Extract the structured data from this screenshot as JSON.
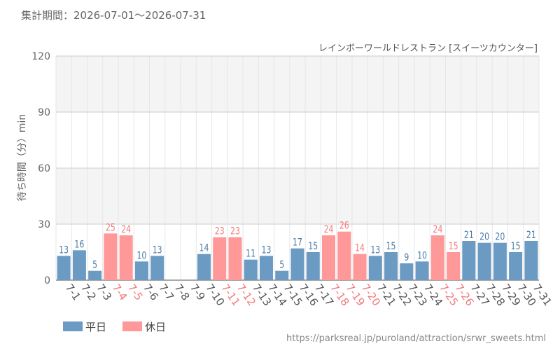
{
  "header": {
    "period_label": "集計期間：2026-07-01～2026-07-31",
    "attraction_name": "レインボーワールドレストラン [スイーツカウンター]",
    "source_url": "https://parksreal.jp/puroland/attraction/srwr_sweets.html"
  },
  "colors": {
    "weekday": "#6b9bc3",
    "holiday": "#ff9898",
    "weekday_text": "#4a7aa8",
    "holiday_text": "#f07a7a",
    "band": "#f4f4f4",
    "grid": "#e6e6e6",
    "axis_text": "#666666"
  },
  "chart_data": {
    "type": "bar",
    "title": "",
    "xlabel": "",
    "ylabel": "待ち時間（分）min",
    "ylim": [
      0,
      120
    ],
    "yticks": [
      0,
      30,
      60,
      90,
      120
    ],
    "legend_position": "bottom-left",
    "legend": [
      {
        "name": "平日",
        "kind": "weekday"
      },
      {
        "name": "休日",
        "kind": "holiday"
      }
    ],
    "categories": [
      "7-1",
      "7-2",
      "7-3",
      "7-4",
      "7-5",
      "7-6",
      "7-7",
      "7-8",
      "7-9",
      "7-10",
      "7-11",
      "7-12",
      "7-13",
      "7-14",
      "7-15",
      "7-16",
      "7-17",
      "7-18",
      "7-19",
      "7-20",
      "7-21",
      "7-22",
      "7-23",
      "7-24",
      "7-25",
      "7-26",
      "7-27",
      "7-28",
      "7-29",
      "7-30",
      "7-31"
    ],
    "values": [
      13,
      16,
      5,
      25,
      24,
      10,
      13,
      null,
      null,
      14,
      23,
      23,
      11,
      13,
      5,
      17,
      15,
      24,
      26,
      14,
      13,
      15,
      9,
      10,
      24,
      15,
      21,
      20,
      20,
      15,
      21
    ],
    "day_type": [
      "weekday",
      "weekday",
      "weekday",
      "holiday",
      "holiday",
      "weekday",
      "weekday",
      "weekday",
      "weekday",
      "weekday",
      "holiday",
      "holiday",
      "weekday",
      "weekday",
      "weekday",
      "weekday",
      "weekday",
      "holiday",
      "holiday",
      "holiday",
      "weekday",
      "weekday",
      "weekday",
      "weekday",
      "holiday",
      "holiday",
      "weekday",
      "weekday",
      "weekday",
      "weekday",
      "weekday"
    ]
  }
}
